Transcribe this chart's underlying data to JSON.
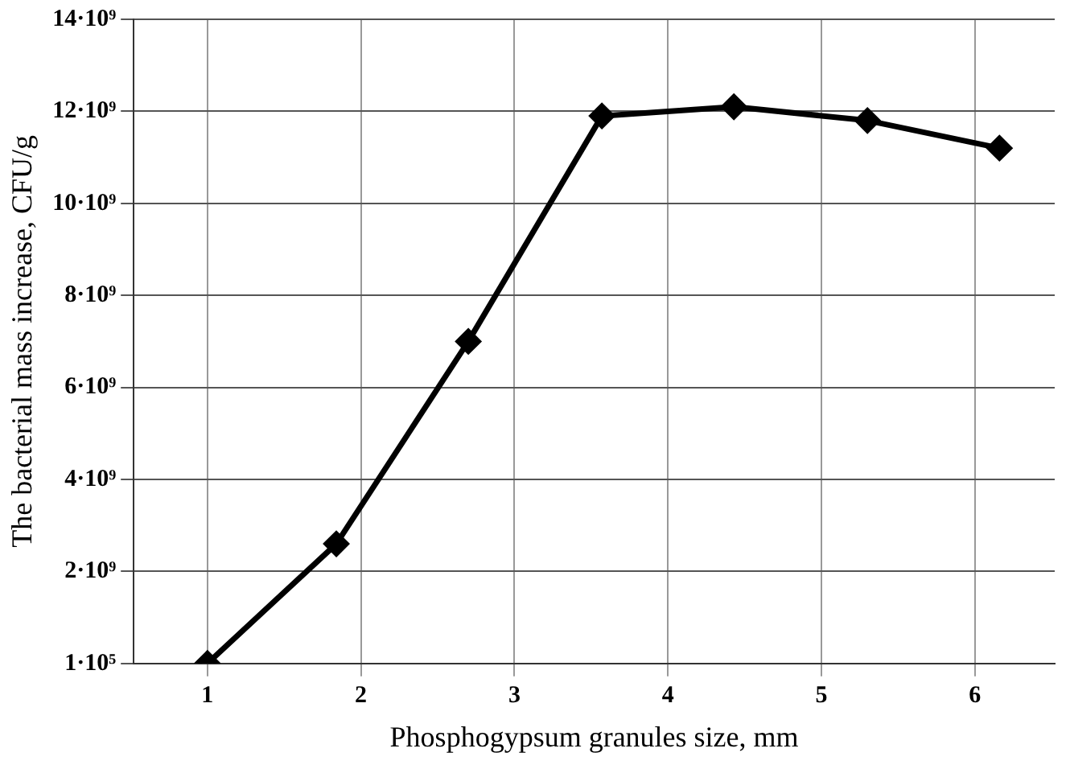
{
  "chart_data": {
    "type": "line",
    "xlabel": "Phosphogypsum granules size, mm",
    "ylabel": "The bacterial mass increase, CFU/g",
    "x": [
      1,
      1.84,
      2.7,
      3.57,
      4.43,
      5.3,
      6.16
    ],
    "series": [
      {
        "color": "#000000",
        "values": [
          100000,
          2600000000,
          7000000000,
          11900000000,
          12100000000,
          11800000000,
          11200000000
        ]
      }
    ],
    "xlim": [
      0.52,
      6.52
    ],
    "xticks": [
      1,
      2,
      3,
      4,
      5,
      6
    ],
    "ylim": [
      100000,
      14000000000
    ],
    "yticks": [
      {
        "value": 100000,
        "label": "1·10⁵"
      },
      {
        "value": 2000000000,
        "label": "2·10⁹"
      },
      {
        "value": 4000000000,
        "label": "4·10⁹"
      },
      {
        "value": 6000000000,
        "label": "6·10⁹"
      },
      {
        "value": 8000000000,
        "label": "8·10⁹"
      },
      {
        "value": 10000000000,
        "label": "10·10⁹"
      },
      {
        "value": 12000000000,
        "label": "12·10⁹"
      },
      {
        "value": 14000000000,
        "label": "14·10⁹"
      }
    ],
    "grid": true,
    "legend": false,
    "marker": "diamond",
    "line_style": "solid"
  }
}
